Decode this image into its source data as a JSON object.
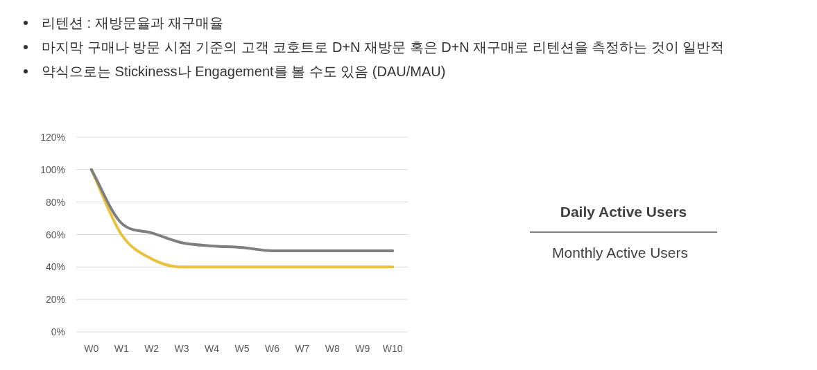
{
  "chart_data": {
    "type": "line",
    "annotations": [
      "리텐션 : 재방문율과 재구매율",
      "마지막 구매나 방문 시점 기준의 고객 코호트로 D+N 재방문 혹은 D+N 재구매로 리텐션을 측정하는 것이 일반적",
      "약식으로는 Stickiness나 Engagement를 볼 수도 있음 (DAU/MAU)",
      "Daily Active Users",
      "Monthly Active Users"
    ],
    "categories": [
      "W0",
      "W1",
      "W2",
      "W3",
      "W4",
      "W5",
      "W6",
      "W7",
      "W8",
      "W9",
      "W10"
    ],
    "series": [
      {
        "color": "#e9c23f",
        "values": [
          100,
          60,
          45,
          40,
          40,
          40,
          40,
          40,
          40,
          40,
          40
        ]
      },
      {
        "color": "#7f7f7f",
        "values": [
          100,
          67,
          61,
          55,
          53,
          52,
          50,
          50,
          50,
          50,
          50
        ]
      }
    ],
    "ylim": [
      0,
      120
    ],
    "yticks": [
      {
        "value": 0,
        "label": "0%"
      },
      {
        "value": 20,
        "label": "20%"
      },
      {
        "value": 40,
        "label": "40%"
      },
      {
        "value": 60,
        "label": "60%"
      },
      {
        "value": 80,
        "label": "80%"
      },
      {
        "value": 100,
        "label": "100%"
      },
      {
        "value": 120,
        "label": "120%"
      }
    ],
    "grid": "y",
    "marker": "none",
    "line_style": "solid"
  }
}
